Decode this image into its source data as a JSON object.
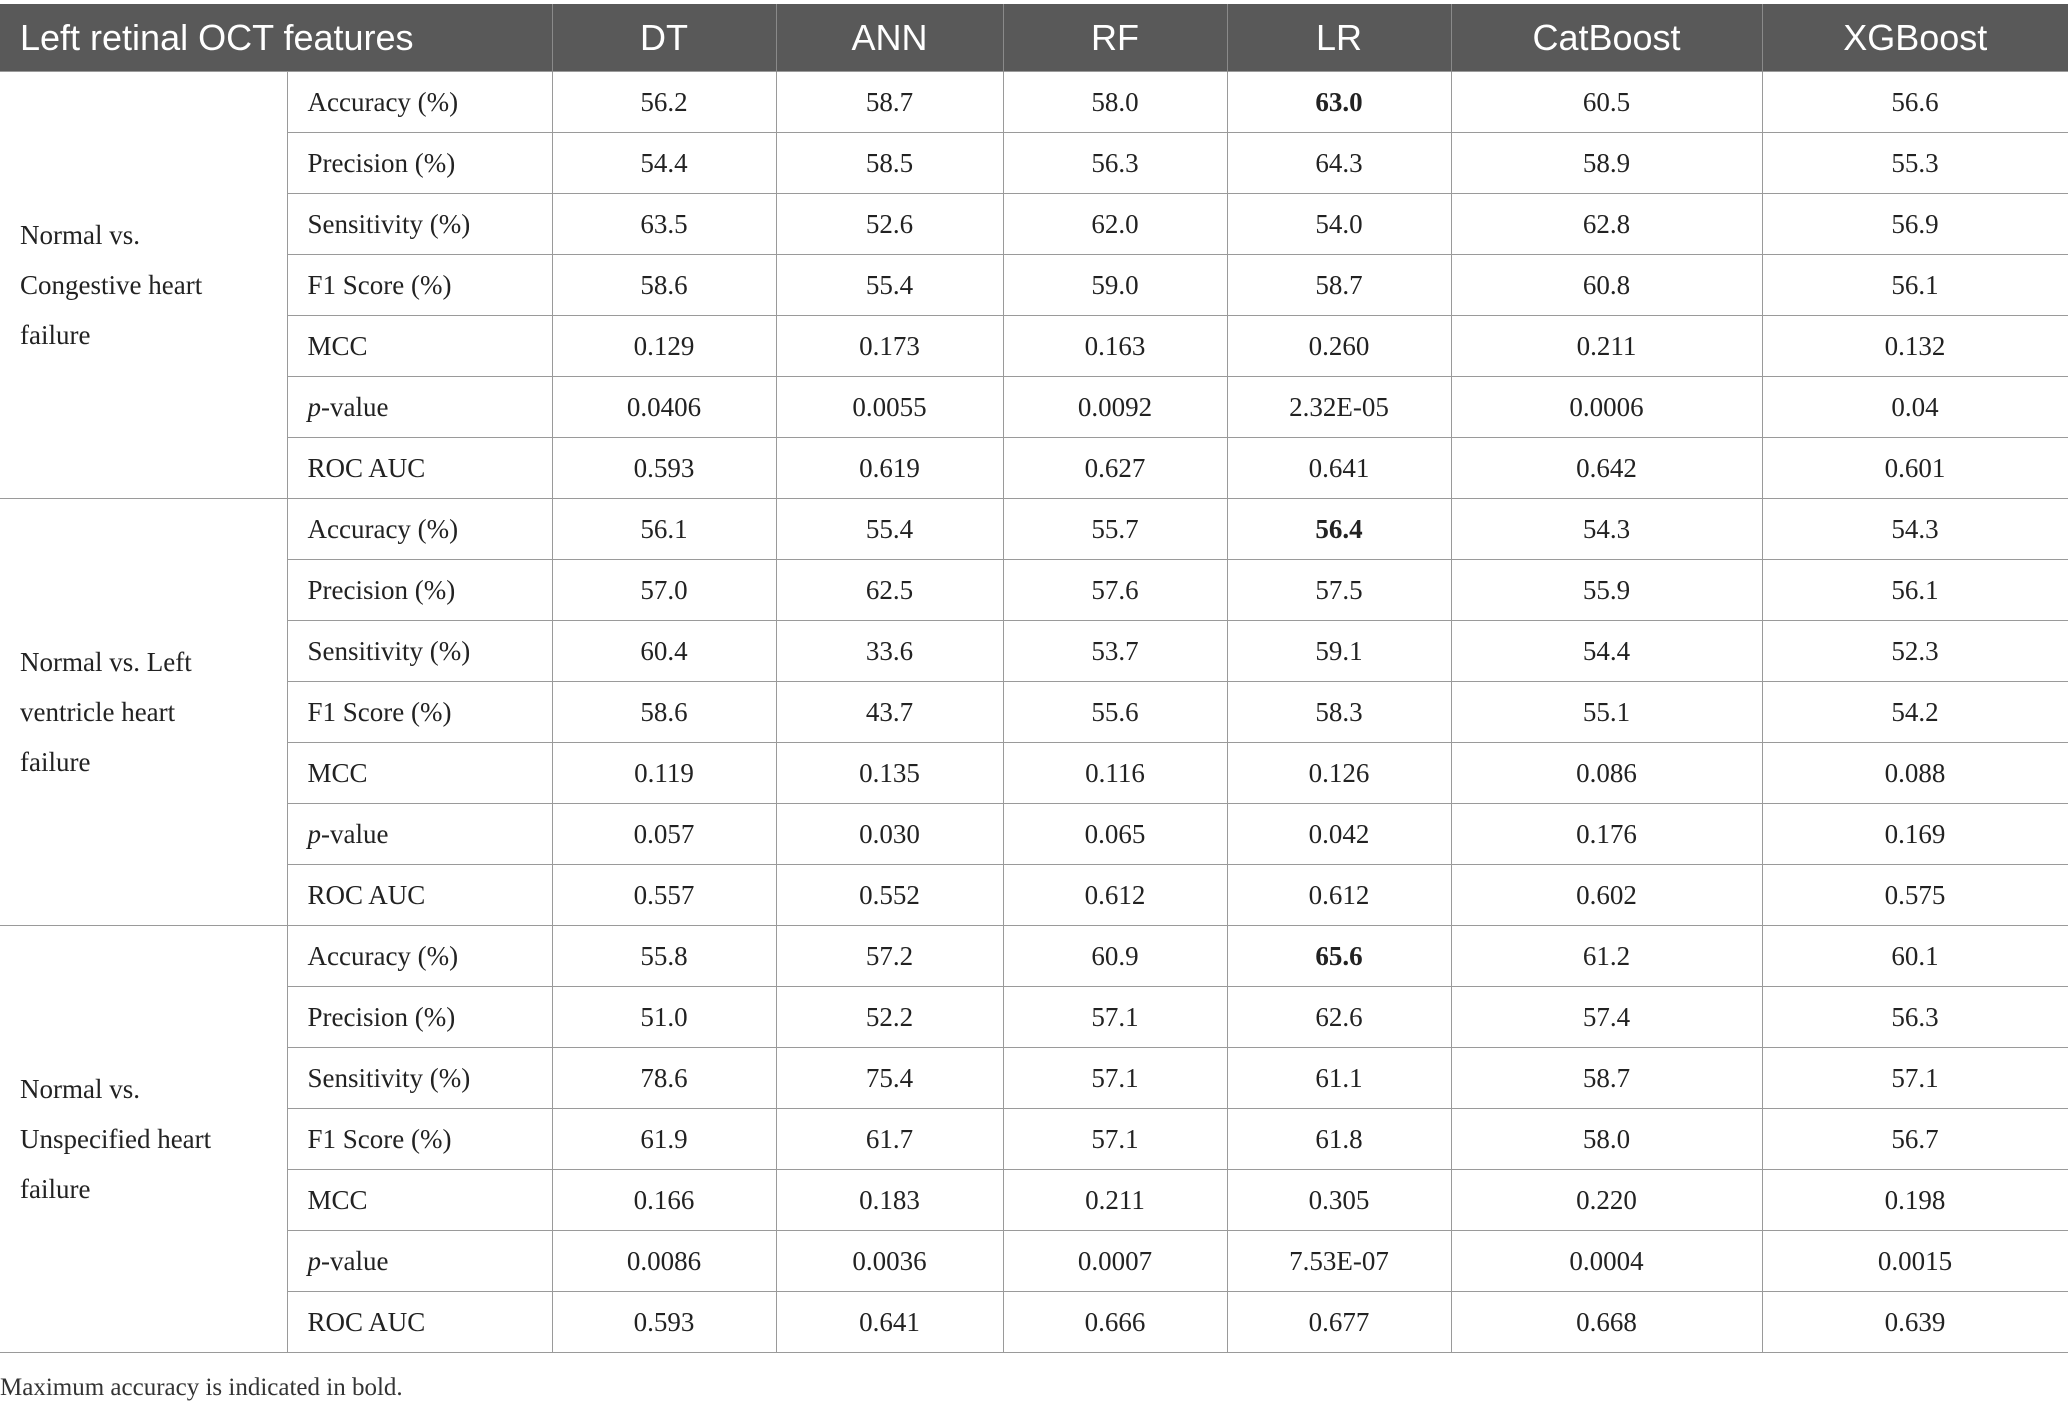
{
  "table": {
    "header": [
      "Left retinal OCT features",
      "DT",
      "ANN",
      "RF",
      "LR",
      "CatBoost",
      "XGBoost"
    ],
    "groups": [
      {
        "label_lines": [
          "Normal vs.",
          "Congestive heart",
          "failure"
        ],
        "rows": [
          {
            "metric": "Accuracy (%)",
            "values": [
              "56.2",
              "58.7",
              "58.0",
              "63.0",
              "60.5",
              "56.6"
            ],
            "bold_index": 3
          },
          {
            "metric": "Precision (%)",
            "values": [
              "54.4",
              "58.5",
              "56.3",
              "64.3",
              "58.9",
              "55.3"
            ]
          },
          {
            "metric": "Sensitivity (%)",
            "values": [
              "63.5",
              "52.6",
              "62.0",
              "54.0",
              "62.8",
              "56.9"
            ]
          },
          {
            "metric": "F1 Score (%)",
            "values": [
              "58.6",
              "55.4",
              "59.0",
              "58.7",
              "60.8",
              "56.1"
            ]
          },
          {
            "metric": "MCC",
            "values": [
              "0.129",
              "0.173",
              "0.163",
              "0.260",
              "0.211",
              "0.132"
            ]
          },
          {
            "metric_italic": "p",
            "metric": "-value",
            "values": [
              "0.0406",
              "0.0055",
              "0.0092",
              "2.32E-05",
              "0.0006",
              "0.04"
            ]
          },
          {
            "metric": "ROC AUC",
            "values": [
              "0.593",
              "0.619",
              "0.627",
              "0.641",
              "0.642",
              "0.601"
            ]
          }
        ]
      },
      {
        "label_lines": [
          "Normal vs. Left",
          "ventricle heart",
          "failure"
        ],
        "rows": [
          {
            "metric": "Accuracy (%)",
            "values": [
              "56.1",
              "55.4",
              "55.7",
              "56.4",
              "54.3",
              "54.3"
            ],
            "bold_index": 3
          },
          {
            "metric": "Precision (%)",
            "values": [
              "57.0",
              "62.5",
              "57.6",
              "57.5",
              "55.9",
              "56.1"
            ]
          },
          {
            "metric": "Sensitivity (%)",
            "values": [
              "60.4",
              "33.6",
              "53.7",
              "59.1",
              "54.4",
              "52.3"
            ]
          },
          {
            "metric": "F1 Score (%)",
            "values": [
              "58.6",
              "43.7",
              "55.6",
              "58.3",
              "55.1",
              "54.2"
            ]
          },
          {
            "metric": "MCC",
            "values": [
              "0.119",
              "0.135",
              "0.116",
              "0.126",
              "0.086",
              "0.088"
            ]
          },
          {
            "metric_italic": "p",
            "metric": "-value",
            "values": [
              "0.057",
              "0.030",
              "0.065",
              "0.042",
              "0.176",
              "0.169"
            ]
          },
          {
            "metric": "ROC AUC",
            "values": [
              "0.557",
              "0.552",
              "0.612",
              "0.612",
              "0.602",
              "0.575"
            ]
          }
        ]
      },
      {
        "label_lines": [
          "Normal vs.",
          "Unspecified heart",
          "failure"
        ],
        "rows": [
          {
            "metric": "Accuracy (%)",
            "values": [
              "55.8",
              "57.2",
              "60.9",
              "65.6",
              "61.2",
              "60.1"
            ],
            "bold_index": 3
          },
          {
            "metric": "Precision (%)",
            "values": [
              "51.0",
              "52.2",
              "57.1",
              "62.6",
              "57.4",
              "56.3"
            ]
          },
          {
            "metric": "Sensitivity (%)",
            "values": [
              "78.6",
              "75.4",
              "57.1",
              "61.1",
              "58.7",
              "57.1"
            ]
          },
          {
            "metric": "F1 Score (%)",
            "values": [
              "61.9",
              "61.7",
              "57.1",
              "61.8",
              "58.0",
              "56.7"
            ]
          },
          {
            "metric": "MCC",
            "values": [
              "0.166",
              "0.183",
              "0.211",
              "0.305",
              "0.220",
              "0.198"
            ]
          },
          {
            "metric_italic": "p",
            "metric": "-value",
            "values": [
              "0.0086",
              "0.0036",
              "0.0007",
              "7.53E-07",
              "0.0004",
              "0.0015"
            ]
          },
          {
            "metric": "ROC AUC",
            "values": [
              "0.593",
              "0.641",
              "0.666",
              "0.677",
              "0.668",
              "0.639"
            ]
          }
        ]
      }
    ]
  },
  "footnote": "Maximum accuracy is indicated in bold."
}
